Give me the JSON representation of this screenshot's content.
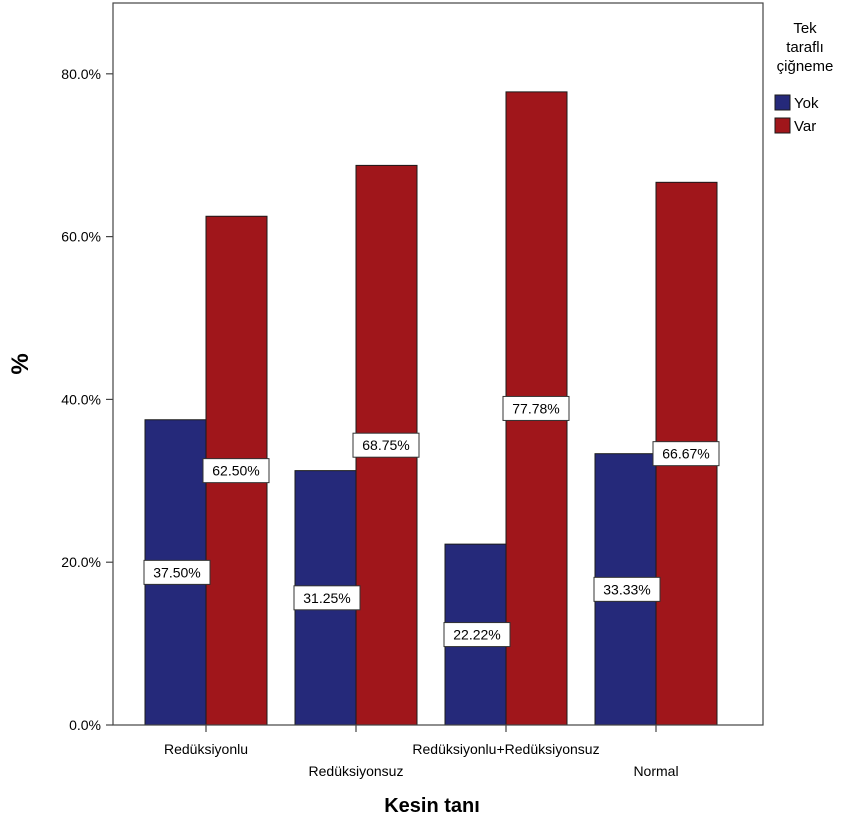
{
  "chart_data": {
    "type": "bar",
    "categories": [
      "Redüksiyonlu",
      "Redüksiyonsuz",
      "Redüksiyonlu+Redüksiyonsuz",
      "Normal"
    ],
    "series": [
      {
        "name": "Yok",
        "color": "#25297a",
        "values": [
          37.5,
          31.25,
          22.22,
          33.33
        ],
        "labels": [
          "37.50%",
          "31.25%",
          "22.22%",
          "33.33%"
        ]
      },
      {
        "name": "Var",
        "color": "#a0161b",
        "values": [
          62.5,
          68.75,
          77.78,
          66.67
        ],
        "labels": [
          "62.50%",
          "68.75%",
          "77.78%",
          "66.67%"
        ]
      }
    ],
    "xlabel": "Kesin tanı",
    "ylabel": "%",
    "ylim": [
      0,
      88.7
    ],
    "yticks": [
      0,
      20,
      40,
      60,
      80
    ],
    "ytick_labels": [
      "0.0%",
      "20.0%",
      "40.0%",
      "60.0%",
      "80.0%"
    ],
    "grid": false,
    "legend": {
      "title_lines": [
        "Tek",
        "taraflı",
        "çiğneme"
      ],
      "placement": "right"
    }
  }
}
